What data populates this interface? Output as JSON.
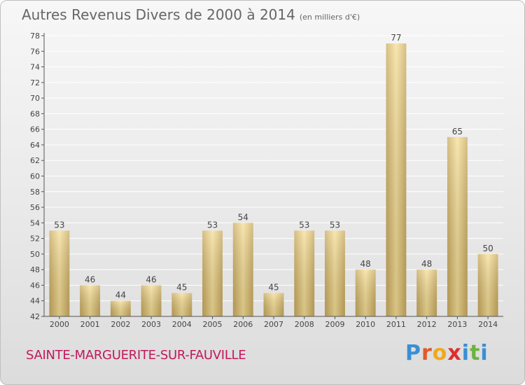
{
  "header": {
    "title": "Autres Revenus Divers de 2000 à 2014",
    "unit": "(en milliers d'€)"
  },
  "footer": {
    "place": "SAINTE-MARGUERITE-SUR-FAUVILLE"
  },
  "logo": {
    "text": "Proxiti",
    "letters": [
      {
        "ch": "P",
        "color": "#3a8fd4"
      },
      {
        "ch": "r",
        "color": "#e05a2b"
      },
      {
        "ch": "o",
        "color": "#f0a91e"
      },
      {
        "ch": "x",
        "color": "#e02c2c"
      },
      {
        "ch": "i",
        "color": "#3a8fd4"
      },
      {
        "ch": "t",
        "color": "#6db33f"
      },
      {
        "ch": "i",
        "color": "#3a8fd4"
      }
    ]
  },
  "chart_data": {
    "type": "bar",
    "categories": [
      "2000",
      "2001",
      "2002",
      "2003",
      "2004",
      "2005",
      "2006",
      "2007",
      "2008",
      "2009",
      "2010",
      "2011",
      "2012",
      "2013",
      "2014"
    ],
    "values": [
      53,
      46,
      44,
      46,
      45,
      53,
      54,
      45,
      53,
      53,
      48,
      77,
      48,
      65,
      50
    ],
    "ylim": [
      42,
      78
    ],
    "yticks": [
      42,
      44,
      46,
      48,
      50,
      52,
      54,
      56,
      58,
      60,
      62,
      64,
      66,
      68,
      70,
      72,
      74,
      76,
      78
    ],
    "grid": true,
    "colors": {
      "bar_light": "#f6df97",
      "bar_dark": "#c9aa5e",
      "grid": "#ffffff",
      "axis": "#555555",
      "label": "#444444"
    }
  }
}
